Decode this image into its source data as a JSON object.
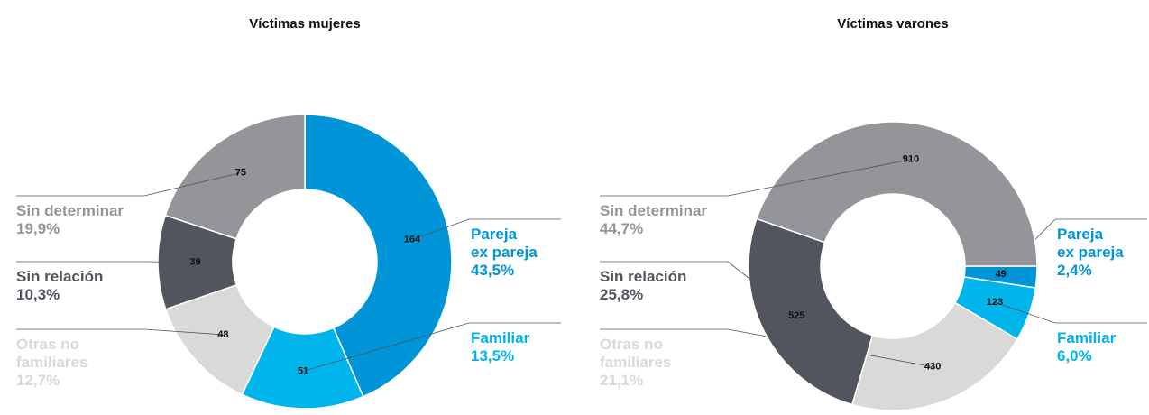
{
  "chart_data": [
    {
      "type": "donut",
      "title": "Víctimas mujeres",
      "categories": [
        [
          "Pareja",
          "ex pareja"
        ],
        [
          "Familiar"
        ],
        [
          "Otras no",
          "familiares"
        ],
        [
          "Sin relación"
        ],
        [
          "Sin determinar"
        ]
      ],
      "values": [
        164,
        51,
        48,
        39,
        75
      ],
      "percent_labels": [
        "43,5%",
        "13,5%",
        "12,7%",
        "10,3%",
        "19,9%"
      ],
      "colors": [
        "#0095d9",
        "#00b5ec",
        "#d9d9d9",
        "#52555e",
        "#939598"
      ]
    },
    {
      "type": "donut",
      "title": "Víctimas varones",
      "categories": [
        [
          "Pareja",
          "ex pareja"
        ],
        [
          "Familiar"
        ],
        [
          "Otras no",
          "familiares"
        ],
        [
          "Sin relación"
        ],
        [
          "Sin determinar"
        ]
      ],
      "values": [
        49,
        123,
        430,
        525,
        910
      ],
      "percent_labels": [
        "2,4%",
        "6,0%",
        "21,1%",
        "25,8%",
        "44,7%"
      ],
      "colors": [
        "#0095d9",
        "#00b5ec",
        "#d9d9d9",
        "#52555e",
        "#939598"
      ]
    }
  ]
}
